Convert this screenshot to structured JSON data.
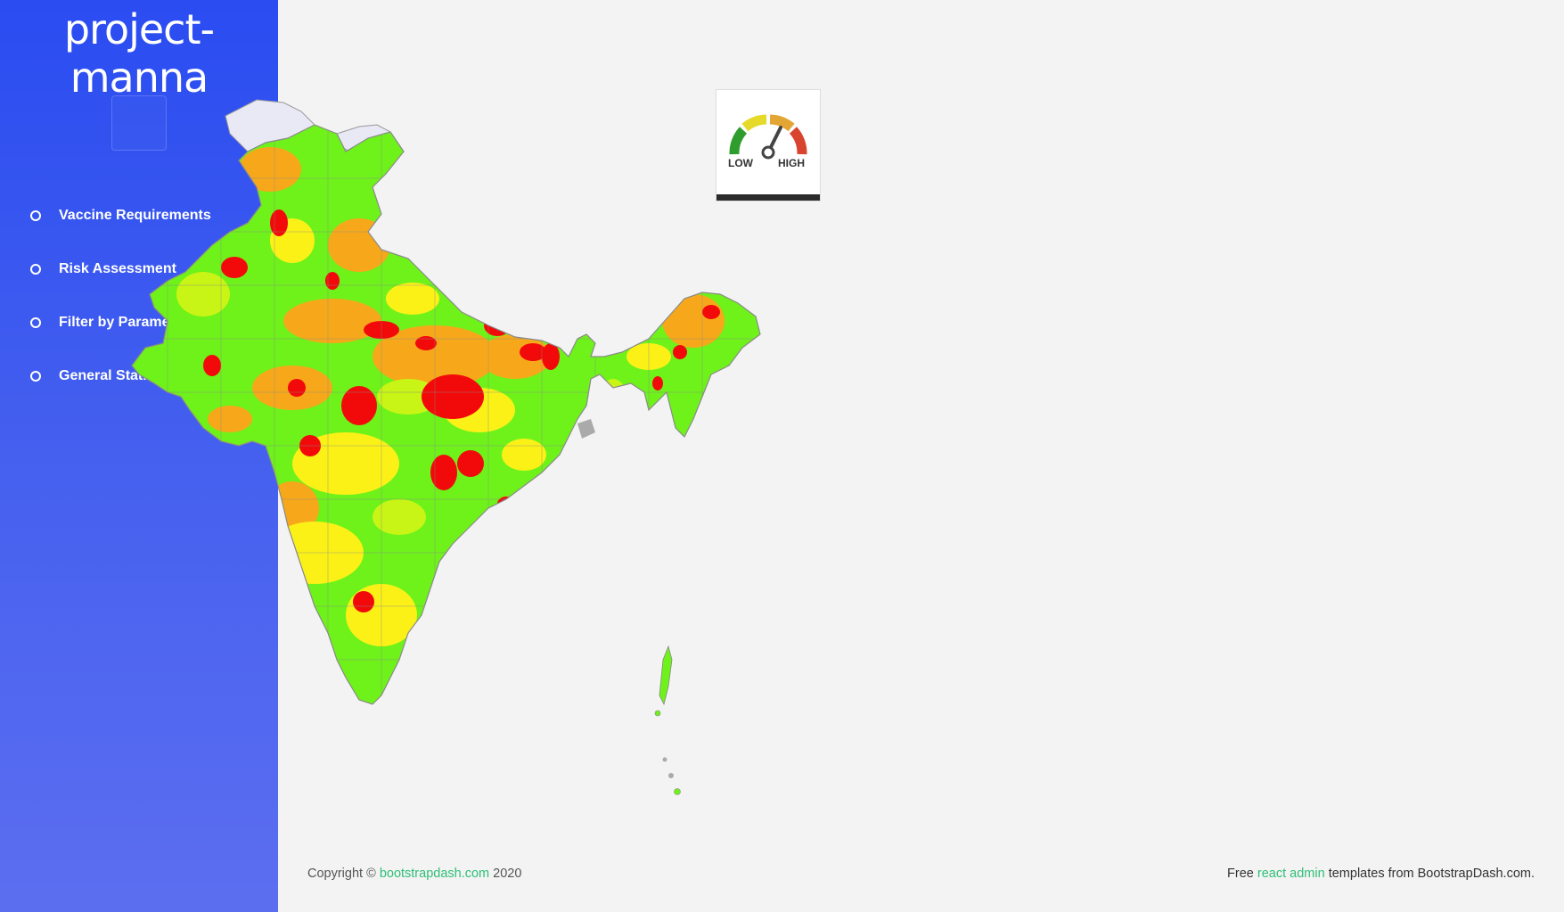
{
  "app": {
    "brand": "project-manna"
  },
  "sidebar": {
    "items": [
      {
        "label": "Vaccine Requirements"
      },
      {
        "label": "Risk Assessment"
      },
      {
        "label": "Filter by Parameters"
      },
      {
        "label": "General Statistics"
      }
    ]
  },
  "gauge": {
    "low_label": "LOW",
    "high_label": "HIGH"
  },
  "risk_colors": {
    "low": "#6ef21a",
    "low_mid": "#c8f515",
    "mid": "#fbf117",
    "high": "#f7a81a",
    "very_high": "#f20a0a",
    "no_data": "#e9e9f6"
  },
  "footer": {
    "copyright_prefix": "Copyright ©",
    "copyright_link": "bootstrapdash.com",
    "copyright_year": "2020",
    "right_prefix": "Free",
    "right_link": "react admin",
    "right_suffix": "templates from BootstrapDash.com."
  }
}
